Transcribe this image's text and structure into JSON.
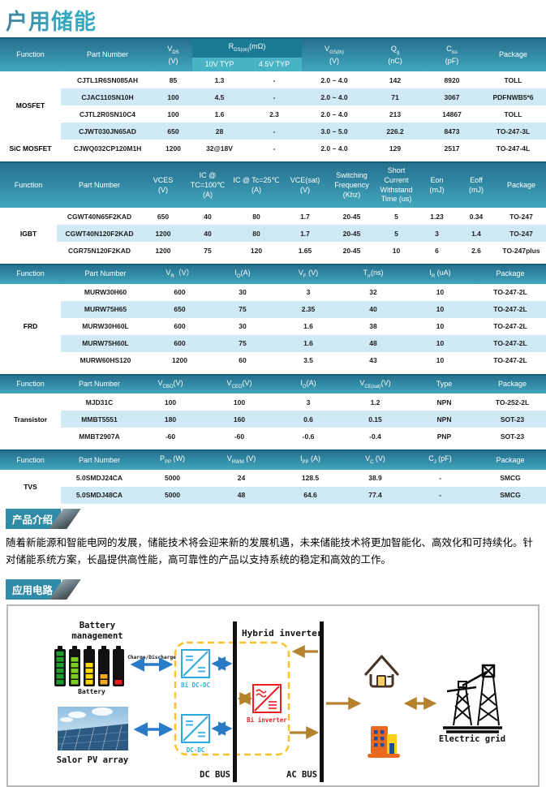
{
  "page": {
    "title": "户用储能"
  },
  "colors": {
    "accent_teal": "#2f8ba6",
    "header_gradient_top": "#26708e",
    "header_gradient_bottom": "#40a6bc",
    "row_highlight": "#cfe9f5",
    "arrow_blue": "#2a7ac7",
    "arrow_brown": "#b5812c",
    "dashed_box_yellow": "#f9c32e",
    "converter_cyan": "#29abe2",
    "inverter_red": "#ee1c23"
  },
  "tables": [
    {
      "name": "mosfet",
      "cols": {
        "function": "Function",
        "part": "Part Number",
        "vds": {
          "b": "V",
          "s": "DS",
          "u": "(V)"
        },
        "rds": {
          "b": "R",
          "s": "DS(on)",
          "u": "(mΩ)"
        },
        "sub10": "10V TYP",
        "sub45": "4.5V TYP",
        "vgs": {
          "b": "V",
          "s": "GS(th)",
          "u": "(V)"
        },
        "qg": {
          "b": "Q",
          "s": "g",
          "u": "(nC)"
        },
        "ciss": {
          "b": "C",
          "s": "iss",
          "u": "(pF)"
        },
        "package": "Package"
      },
      "function_groups": [
        {
          "label": "MOSFET",
          "span": 4
        },
        {
          "label": "SiC MOSFET",
          "span": 1
        }
      ],
      "rows": [
        [
          "CJTL1R6SN085AH",
          "85",
          "1.3",
          "-",
          "2.0 ~ 4.0",
          "142",
          "8920",
          "TOLL"
        ],
        [
          "CJAC110SN10H",
          "100",
          "4.5",
          "-",
          "2.0 ~ 4.0",
          "71",
          "3067",
          "PDFNWB5*6"
        ],
        [
          "CJTL2R0SN10C4",
          "100",
          "1.6",
          "2.3",
          "2.0 ~ 4.0",
          "213",
          "14867",
          "TOLL"
        ],
        [
          "CJWT030JN65AD",
          "650",
          "28",
          "-",
          "3.0 ~ 5.0",
          "226.2",
          "8473",
          "TO-247-3L"
        ],
        [
          "CJWQ032CP120M1H",
          "1200",
          "32@18V",
          "-",
          "2.0 ~ 4.0",
          "129",
          "2517",
          "TO-247-4L"
        ]
      ]
    },
    {
      "name": "igbt",
      "cols": {
        "function": "Function",
        "part": "Part Number",
        "vces": {
          "l": "VCES",
          "u": "(V)"
        },
        "ic100": {
          "l": "IC @ TC=100℃",
          "u": "(A)"
        },
        "ic25": {
          "l": "IC @ Tc=25℃",
          "u": "(A)"
        },
        "vcesat": {
          "l": "VCE(sat)",
          "u": "(V)"
        },
        "swf": {
          "l": "Switching Frequency",
          "u": "(Khz)"
        },
        "short": {
          "l": "Short Current Withstand",
          "u": "Time (us)"
        },
        "eon": {
          "l": "Eon",
          "u": "(mJ)"
        },
        "eoff": {
          "l": "Eoff",
          "u": "(mJ)"
        },
        "package": "Package"
      },
      "function_groups": [
        {
          "label": "IGBT",
          "span": 3
        }
      ],
      "rows": [
        [
          "CGWT40N65F2KAD",
          "650",
          "40",
          "80",
          "1.7",
          "20-45",
          "5",
          "1.23",
          "0.34",
          "TO-247"
        ],
        [
          "CGWT40N120F2KAD",
          "1200",
          "40",
          "80",
          "1.7",
          "20-45",
          "5",
          "3",
          "1.4",
          "TO-247"
        ],
        [
          "CGR75N120F2KAD",
          "1200",
          "75",
          "120",
          "1.65",
          "20-45",
          "10",
          "6",
          "2.6",
          "TO-247plus"
        ]
      ]
    },
    {
      "name": "frd",
      "cols": {
        "function": "Function",
        "part": "Part Number",
        "vr": {
          "b": "V",
          "s": "R",
          "u": "（V）"
        },
        "io": {
          "b": "I",
          "s": "O",
          "u": "(A)"
        },
        "vf": {
          "b": "V",
          "s": "F",
          "u": " (V)"
        },
        "trr": {
          "b": "T",
          "s": "rr",
          "u": "(ns)"
        },
        "ir": {
          "b": "I",
          "s": "R",
          "u": " (uA)"
        },
        "package": "Package"
      },
      "function_groups": [
        {
          "label": "FRD",
          "span": 5
        }
      ],
      "rows": [
        [
          "MURW30H60",
          "600",
          "30",
          "3",
          "32",
          "10",
          "TO-247-2L"
        ],
        [
          "MURW75H65",
          "650",
          "75",
          "2.35",
          "40",
          "10",
          "TO-247-2L"
        ],
        [
          "MURW30H60L",
          "600",
          "30",
          "1.6",
          "38",
          "10",
          "TO-247-2L"
        ],
        [
          "MURW75H60L",
          "600",
          "75",
          "1.6",
          "48",
          "10",
          "TO-247-2L"
        ],
        [
          "MURW60HS120",
          "1200",
          "60",
          "3.5",
          "43",
          "10",
          "TO-247-2L"
        ]
      ]
    },
    {
      "name": "transistor",
      "cols": {
        "function": "Function",
        "part": "Part Number",
        "vcbo": {
          "b": "V",
          "s": "CBO",
          "u": "(V)"
        },
        "vceo": {
          "b": "V",
          "s": "CEO",
          "u": "(V)"
        },
        "io": {
          "b": "I",
          "s": "O",
          "u": "(A)"
        },
        "vcesat": {
          "b": "V",
          "s": "CE(sat)",
          "u": "(V)"
        },
        "type": "Type",
        "package": "Package"
      },
      "function_groups": [
        {
          "label": "Transistor",
          "span": 3
        }
      ],
      "rows": [
        [
          "MJD31C",
          "100",
          "100",
          "3",
          "1.2",
          "NPN",
          "TO-252-2L"
        ],
        [
          "MMBT5551",
          "180",
          "160",
          "0.6",
          "0.15",
          "NPN",
          "SOT-23"
        ],
        [
          "MMBT2907A",
          "-60",
          "-60",
          "-0.6",
          "-0.4",
          "PNP",
          "SOT-23"
        ]
      ]
    },
    {
      "name": "tvs",
      "cols": {
        "function": "Function",
        "part": "Part Number",
        "ppp": {
          "b": "P",
          "s": "PP",
          "u": " (W)"
        },
        "vrwm": {
          "b": "V",
          "s": "RWM",
          "u": " (V)"
        },
        "ipp": {
          "b": "I",
          "s": "PP",
          "u": " (A)"
        },
        "vc": {
          "b": "V",
          "s": "C",
          "u": " (V)"
        },
        "cj": {
          "b": "C",
          "s": "J",
          "u": " (pF)"
        },
        "package": "Package"
      },
      "function_groups": [
        {
          "label": "TVS",
          "span": 2
        }
      ],
      "rows": [
        [
          "5.0SMDJ24CA",
          "5000",
          "24",
          "128.5",
          "38.9",
          "-",
          "SMCG"
        ],
        [
          "5.0SMDJ48CA",
          "5000",
          "48",
          "64.6",
          "77.4",
          "-",
          "SMCG"
        ]
      ]
    }
  ],
  "sections": {
    "intro": {
      "label": "产品介绍",
      "text": "随着新能源和智能电网的发展，储能技术将会迎来新的发展机遇，未来储能技术将更加智能化、高效化和可持续化。针对储能系统方案，长晶提供高性能，高可靠性的产品以支持系统的稳定和高效的工作。"
    },
    "circuit": {
      "label": "应用电路"
    }
  },
  "diagram": {
    "battery_management_line1": "Battery",
    "battery_management_line2": "management",
    "battery_label": "Battery",
    "charge_label": "Charge/Discharge",
    "hybrid_label": "Hybrid inverter",
    "bi_dcdc_label": "Bi DC-DC",
    "dcdc_label": "DC-DC",
    "bi_inverter_label": "Bi inverter",
    "dc_bus_label": "DC BUS",
    "ac_bus_label": "AC BUS",
    "solar_label": "Salor PV array",
    "grid_label": "Electric grid"
  }
}
